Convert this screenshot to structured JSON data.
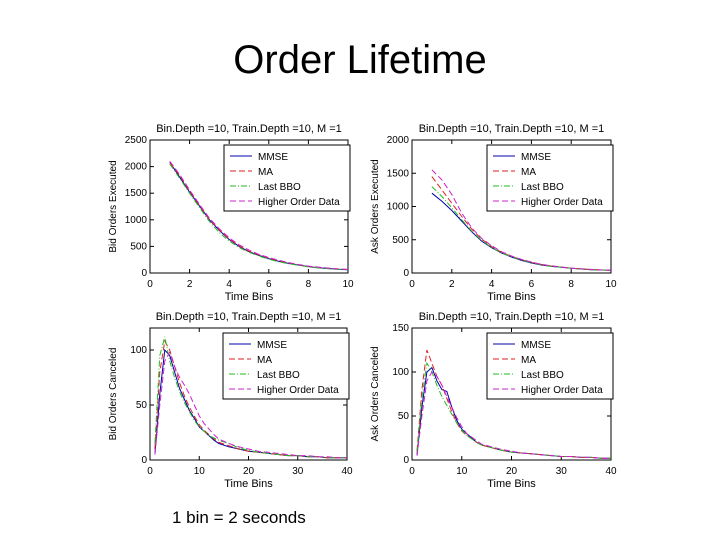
{
  "slide": {
    "title": "Order Lifetime",
    "footnote": "1 bin = 2 seconds"
  },
  "legend_colors": {
    "MMSE": "#0000aa",
    "MA": "#dd2222",
    "Last BBO": "#22bb22",
    "Higher Order Data": "#cc22cc"
  },
  "chart_data": [
    {
      "type": "line",
      "title": "Bin.Depth =10, Train.Depth =10, M =1",
      "xlabel": "Time Bins",
      "ylabel": "Bid Orders Executed",
      "xlim": [
        0,
        10
      ],
      "ylim": [
        0,
        2500
      ],
      "xticks": [
        0,
        2,
        4,
        6,
        8,
        10
      ],
      "yticks": [
        0,
        500,
        1000,
        1500,
        2000,
        2500
      ],
      "legend": "top-right",
      "series": [
        {
          "name": "MMSE",
          "x": [
            1,
            1.5,
            2,
            2.5,
            3,
            3.5,
            4,
            4.5,
            5,
            5.5,
            6,
            6.5,
            7,
            7.5,
            8,
            8.5,
            9,
            9.5,
            10
          ],
          "values": [
            2080,
            1800,
            1520,
            1260,
            1000,
            800,
            630,
            500,
            400,
            330,
            270,
            220,
            180,
            150,
            120,
            100,
            85,
            70,
            60
          ]
        },
        {
          "name": "MA",
          "x": [
            1,
            1.5,
            2,
            2.5,
            3,
            3.5,
            4,
            4.5,
            5,
            5.5,
            6,
            6.5,
            7,
            7.5,
            8,
            8.5,
            9,
            9.5,
            10
          ],
          "values": [
            2070,
            1830,
            1540,
            1270,
            1010,
            810,
            640,
            510,
            410,
            340,
            280,
            230,
            190,
            155,
            125,
            105,
            90,
            75,
            65
          ]
        },
        {
          "name": "Last BBO",
          "x": [
            1,
            1.5,
            2,
            2.5,
            3,
            3.5,
            4,
            4.5,
            5,
            5.5,
            6,
            6.5,
            7,
            7.5,
            8,
            8.5,
            9,
            9.5,
            10
          ],
          "values": [
            2050,
            1780,
            1500,
            1230,
            970,
            760,
            600,
            480,
            390,
            320,
            260,
            210,
            175,
            145,
            115,
            95,
            80,
            70,
            60
          ]
        },
        {
          "name": "Higher Order Data",
          "x": [
            1,
            1.5,
            2,
            2.5,
            3,
            3.5,
            4,
            4.5,
            5,
            5.5,
            6,
            6.5,
            7,
            7.5,
            8,
            8.5,
            9,
            9.5,
            10
          ],
          "values": [
            2100,
            1850,
            1560,
            1290,
            1030,
            830,
            660,
            530,
            430,
            350,
            290,
            240,
            195,
            160,
            130,
            110,
            92,
            78,
            68
          ]
        }
      ]
    },
    {
      "type": "line",
      "title": "Bin.Depth =10, Train.Depth =10, M =1",
      "xlabel": "Time Bins",
      "ylabel": "Ask Orders Executed",
      "xlim": [
        0,
        10
      ],
      "ylim": [
        0,
        2000
      ],
      "xticks": [
        0,
        2,
        4,
        6,
        8,
        10
      ],
      "yticks": [
        0,
        500,
        1000,
        1500,
        2000
      ],
      "legend": "top-right",
      "series": [
        {
          "name": "MMSE",
          "x": [
            1,
            1.5,
            2,
            2.5,
            3,
            3.5,
            4,
            4.5,
            5,
            5.5,
            6,
            6.5,
            7,
            7.5,
            8,
            8.5,
            9,
            9.5,
            10
          ],
          "values": [
            1200,
            1080,
            940,
            780,
            620,
            480,
            380,
            300,
            240,
            190,
            150,
            120,
            100,
            85,
            70,
            60,
            50,
            45,
            40
          ]
        },
        {
          "name": "MA",
          "x": [
            1,
            1.5,
            2,
            2.5,
            3,
            3.5,
            4,
            4.5,
            5,
            5.5,
            6,
            6.5,
            7,
            7.5,
            8,
            8.5,
            9,
            9.5,
            10
          ],
          "values": [
            1450,
            1250,
            1050,
            850,
            660,
            510,
            400,
            310,
            250,
            200,
            160,
            130,
            105,
            88,
            72,
            62,
            52,
            46,
            40
          ]
        },
        {
          "name": "Last BBO",
          "x": [
            1,
            1.5,
            2,
            2.5,
            3,
            3.5,
            4,
            4.5,
            5,
            5.5,
            6,
            6.5,
            7,
            7.5,
            8,
            8.5,
            9,
            9.5,
            10
          ],
          "values": [
            1300,
            1150,
            980,
            800,
            630,
            490,
            385,
            300,
            245,
            195,
            155,
            125,
            100,
            85,
            70,
            60,
            50,
            45,
            40
          ]
        },
        {
          "name": "Higher Order Data",
          "x": [
            1,
            1.5,
            2,
            2.5,
            3,
            3.5,
            4,
            4.5,
            5,
            5.5,
            6,
            6.5,
            7,
            7.5,
            8,
            8.5,
            9,
            9.5,
            10
          ],
          "values": [
            1550,
            1400,
            1180,
            900,
            680,
            520,
            410,
            320,
            255,
            205,
            165,
            130,
            108,
            90,
            74,
            63,
            54,
            47,
            42
          ]
        }
      ]
    },
    {
      "type": "line",
      "title": "Bin.Depth =10, Train.Depth =10, M =1",
      "xlabel": "Time Bins",
      "ylabel": "Bid Orders Canceled",
      "xlim": [
        0,
        40
      ],
      "ylim": [
        0,
        120
      ],
      "xticks": [
        0,
        10,
        20,
        30,
        40
      ],
      "yticks": [
        0,
        50,
        100
      ],
      "legend": "top-right",
      "series": [
        {
          "name": "MMSE",
          "x": [
            1,
            2,
            3,
            4,
            5,
            6,
            7,
            8,
            9,
            10,
            11,
            12,
            13,
            14,
            16,
            18,
            20,
            22,
            24,
            26,
            28,
            30,
            32,
            34,
            36,
            38,
            40
          ],
          "values": [
            5,
            60,
            100,
            95,
            80,
            65,
            55,
            45,
            38,
            30,
            26,
            22,
            18,
            15,
            12,
            10,
            8,
            7,
            6,
            5,
            4,
            4,
            3,
            3,
            2,
            2,
            2
          ]
        },
        {
          "name": "MA",
          "x": [
            1,
            2,
            3,
            4,
            5,
            6,
            7,
            8,
            9,
            10,
            11,
            12,
            13,
            14,
            16,
            18,
            20,
            22,
            24,
            26,
            28,
            30,
            32,
            34,
            36,
            38,
            40
          ],
          "values": [
            10,
            80,
            108,
            100,
            85,
            70,
            58,
            48,
            40,
            32,
            27,
            23,
            19,
            16,
            13,
            10,
            8,
            7,
            6,
            5,
            4,
            4,
            3,
            3,
            2,
            2,
            2
          ]
        },
        {
          "name": "Last BBO",
          "x": [
            1,
            2,
            3,
            4,
            5,
            6,
            7,
            8,
            9,
            10,
            11,
            12,
            13,
            14,
            16,
            18,
            20,
            22,
            24,
            26,
            28,
            30,
            32,
            34,
            36,
            38,
            40
          ],
          "values": [
            15,
            95,
            112,
            90,
            75,
            62,
            52,
            44,
            36,
            30,
            26,
            22,
            20,
            18,
            15,
            11,
            9,
            7,
            6,
            5,
            4,
            4,
            3,
            3,
            2,
            2,
            2
          ]
        },
        {
          "name": "Higher Order Data",
          "x": [
            1,
            2,
            3,
            4,
            5,
            6,
            7,
            8,
            9,
            10,
            11,
            12,
            13,
            14,
            16,
            18,
            20,
            22,
            24,
            26,
            28,
            30,
            32,
            34,
            36,
            38,
            40
          ],
          "values": [
            5,
            50,
            90,
            98,
            85,
            75,
            68,
            60,
            50,
            40,
            33,
            28,
            23,
            19,
            15,
            12,
            10,
            8,
            7,
            6,
            5,
            4,
            4,
            3,
            3,
            2,
            2
          ]
        }
      ]
    },
    {
      "type": "line",
      "title": "Bin.Depth =10, Train.Depth =10, M =1",
      "xlabel": "Time Bins",
      "ylabel": "Ask Orders Canceled",
      "xlim": [
        0,
        40
      ],
      "ylim": [
        0,
        150
      ],
      "xticks": [
        0,
        10,
        20,
        30,
        40
      ],
      "yticks": [
        0,
        50,
        100,
        150
      ],
      "legend": "top-right",
      "series": [
        {
          "name": "MMSE",
          "x": [
            1,
            2,
            3,
            4,
            5,
            6,
            7,
            8,
            9,
            10,
            11,
            12,
            13,
            14,
            16,
            18,
            20,
            22,
            24,
            26,
            28,
            30,
            32,
            34,
            36,
            38,
            40
          ],
          "values": [
            5,
            60,
            100,
            105,
            90,
            80,
            78,
            60,
            45,
            35,
            30,
            25,
            20,
            17,
            14,
            11,
            9,
            8,
            7,
            6,
            5,
            4,
            4,
            3,
            3,
            2,
            2
          ]
        },
        {
          "name": "MA",
          "x": [
            1,
            2,
            3,
            4,
            5,
            6,
            7,
            8,
            9,
            10,
            11,
            12,
            13,
            14,
            16,
            18,
            20,
            22,
            24,
            26,
            28,
            30,
            32,
            34,
            36,
            38,
            40
          ],
          "values": [
            10,
            80,
            125,
            110,
            95,
            85,
            70,
            55,
            42,
            33,
            28,
            24,
            20,
            17,
            14,
            11,
            9,
            8,
            7,
            6,
            5,
            4,
            4,
            3,
            3,
            2,
            2
          ]
        },
        {
          "name": "Last BBO",
          "x": [
            1,
            2,
            3,
            4,
            5,
            6,
            7,
            8,
            9,
            10,
            11,
            12,
            13,
            14,
            16,
            18,
            20,
            22,
            24,
            26,
            28,
            30,
            32,
            34,
            36,
            38,
            40
          ],
          "values": [
            8,
            70,
            110,
            100,
            85,
            72,
            62,
            52,
            42,
            34,
            28,
            24,
            20,
            17,
            14,
            11,
            9,
            8,
            7,
            6,
            5,
            4,
            4,
            3,
            3,
            2,
            2
          ]
        },
        {
          "name": "Higher Order Data",
          "x": [
            1,
            2,
            3,
            4,
            5,
            6,
            7,
            8,
            9,
            10,
            11,
            12,
            13,
            14,
            16,
            18,
            20,
            22,
            24,
            26,
            28,
            30,
            32,
            34,
            36,
            38,
            40
          ],
          "values": [
            5,
            50,
            90,
            100,
            95,
            85,
            72,
            60,
            48,
            38,
            30,
            26,
            22,
            18,
            15,
            12,
            10,
            8,
            7,
            6,
            5,
            4,
            4,
            3,
            3,
            2,
            2
          ]
        }
      ]
    }
  ]
}
